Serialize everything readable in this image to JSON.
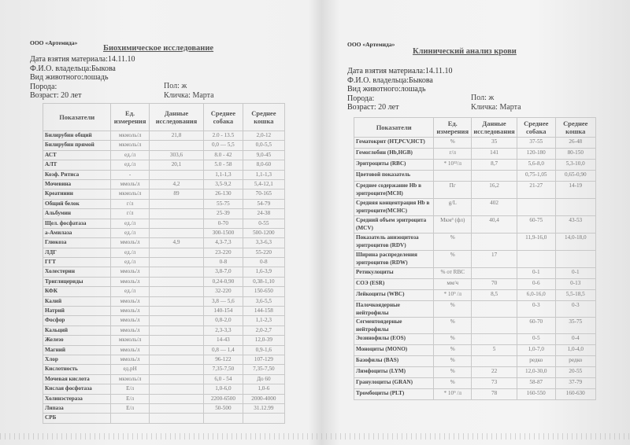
{
  "left": {
    "org": "ООО «Артемида»",
    "title": "Биохимическое исследование",
    "date": "Дата взятия материала:14.11.10",
    "owner": "Ф.И.О. владельца:Быкова",
    "species": "Вид животного:лошадь",
    "breed": "Порода:",
    "age": "Возраст: 20 лет",
    "sex": "Пол: ж",
    "name": "Кличка: Марта",
    "headers": [
      "Показатели",
      "Ед. измерения",
      "Данные исследования",
      "Среднее собака",
      "Среднее кошка"
    ],
    "rows": [
      [
        "Билирубин общий",
        "мкмоль/л",
        "21,8",
        "2.0 - 13.5",
        "2,0-12"
      ],
      [
        "Билирубин прямой",
        "мкмоль/л",
        "",
        "0,0 — 5,5",
        "0,0-5,5"
      ],
      [
        "АСТ",
        "ед./л",
        "303,6",
        "8.0 - 42",
        "9,0-45"
      ],
      [
        "АЛТ",
        "ед./л",
        "20,1",
        "5.0 - 58",
        "8,0-60"
      ],
      [
        "Коэф. Ритиса",
        "-",
        "",
        "1,1-1,3",
        "1,1-1,3"
      ],
      [
        "Мочевина",
        "ммоль/л",
        "4,2",
        "3,5-9,2",
        "5,4-12,1"
      ],
      [
        "Креатинин",
        "мкмоль/л",
        "89",
        "26-130",
        "70-165"
      ],
      [
        "Общий белок",
        "г/л",
        "",
        "55-75",
        "54-79"
      ],
      [
        "Альбумин",
        "г/л",
        "",
        "25-39",
        "24-38"
      ],
      [
        "Щел. фосфатаза",
        "ед./л",
        "",
        "0-70",
        "0-55"
      ],
      [
        "а-Амилаза",
        "ед./л",
        "",
        "300-1500",
        "500-1200"
      ],
      [
        "Глюкоза",
        "ммоль/л",
        "4,9",
        "4,3-7,3",
        "3,3-6,3"
      ],
      [
        "ЛДГ",
        "ед./л",
        "",
        "23-220",
        "55-220"
      ],
      [
        "ГГТ",
        "ед./л",
        "",
        "0-8",
        "0-8"
      ],
      [
        "Холестерин",
        "ммоль/л",
        "",
        "3,8-7,0",
        "1,6-3,9"
      ],
      [
        "Триглицериды",
        "ммоль/л",
        "",
        "0,24-0,90",
        "0,38-1,10"
      ],
      [
        "КФК",
        "ед./л",
        "",
        "32-220",
        "150-650"
      ],
      [
        "Калий",
        "ммоль/л",
        "",
        "3,8 — 5,6",
        "3,6-5,5"
      ],
      [
        "Натрий",
        "ммоль/л",
        "",
        "140-154",
        "144-158"
      ],
      [
        "Фосфор",
        "ммоль/л",
        "",
        "0,8-2,0",
        "1,1-2,3"
      ],
      [
        "Кальций",
        "ммоль/л",
        "",
        "2,3-3,3",
        "2,0-2,7"
      ],
      [
        "Железо",
        "мкмоль/л",
        "",
        "14-43",
        "12,0-39"
      ],
      [
        "Магний",
        "ммоль/л",
        "",
        "0,8 — 1,4",
        "0,9-1,6"
      ],
      [
        "Хлор",
        "ммоль/л",
        "",
        "96-122",
        "107-129"
      ],
      [
        "Кислотность",
        "ед.pH",
        "",
        "7,35-7,50",
        "7,35-7,50"
      ],
      [
        "Мочевая кислота",
        "мкмоль/л",
        "",
        "6,0 - 54",
        "До 60"
      ],
      [
        "Кислая фосфотаза",
        "Е/л",
        "",
        "1,0-6,0",
        "1,0-6"
      ],
      [
        "Холинэстераза",
        "Е/л",
        "",
        "2200-6500",
        "2000-4000"
      ],
      [
        "Липаза",
        "Е/л",
        "",
        "50-500",
        "31.12.99"
      ],
      [
        "СРБ",
        "",
        "",
        "",
        ""
      ]
    ]
  },
  "right": {
    "org": "ООО «Артемида»",
    "title": "Клинический анализ крови",
    "date": "Дата взятия материала:14.11.10",
    "owner": "Ф.И.О. владельца:Быкова",
    "species": "Вид животного:лошадь",
    "breed": "Порода:",
    "age": "Возраст: 20 лет",
    "sex": "Пол: ж",
    "name": "Кличка: Марта",
    "headers": [
      "Показатели",
      "Ед. измерения",
      "Данные исследования",
      "Среднее собака",
      "Среднее кошка"
    ],
    "rows": [
      [
        "Гематокрит (HT,PCV,HCT)",
        "%",
        "35",
        "37-55",
        "26-48"
      ],
      [
        "Гемоглобин (Hb,HGB)",
        "г/л",
        "141",
        "120-180",
        "80-150"
      ],
      [
        "Эритроциты (RBC)",
        "* 10¹²/л",
        "8,7",
        "5,6-8,0",
        "5,3-10,0"
      ],
      [
        "Цветовой показатель",
        "",
        "",
        "0,75-1,05",
        "0,65-0,90"
      ],
      [
        "Среднее содержание Hb в эритроците(MCH)",
        "Пг",
        "16,2",
        "21-27",
        "14-19"
      ],
      [
        "Средняя концентрация Hb в эритроците(MCHC)",
        "g/L",
        "402",
        "",
        ""
      ],
      [
        "Средний объем эритроцита (MCV)",
        "Мкм³ (фл)",
        "40,4",
        "60-75",
        "43-53"
      ],
      [
        "Показатель анизоцитоза эритроцитов (RDV)",
        "%",
        "",
        "11,9-16,0",
        "14,0-18,0"
      ],
      [
        "Ширина распределения эритроцитов (RDW)",
        "%",
        "17",
        "",
        ""
      ],
      [
        "Ретикулоциты",
        "% от RBC",
        "",
        "0-1",
        "0-1"
      ],
      [
        "СОЭ (ESR)",
        "мм/ч",
        "70",
        "0-6",
        "0-13"
      ],
      [
        "Лейкоциты (WBC)",
        "* 10⁹ /л",
        "8,5",
        "6,0-16,0",
        "5,5-18,5"
      ],
      [
        "Палочкоядерные нейтрофилы",
        "%",
        "",
        "0-3",
        "0-3"
      ],
      [
        "Сегментоядерные нейтрофилы",
        "%",
        "",
        "60-70",
        "35-75"
      ],
      [
        "Эозинофилы (EOS)",
        "%",
        "",
        "0-5",
        "0-4"
      ],
      [
        "Моноциты (MONO)",
        "%",
        "5",
        "1,0-7,0",
        "1,0-4,0"
      ],
      [
        "Базофилы (BAS)",
        "%",
        "",
        "редко",
        "редко"
      ],
      [
        "Лимфоциты (LYM)",
        "%",
        "22",
        "12,0-30,0",
        "20-55"
      ],
      [
        "Гранулоциты (GRAN)",
        "%",
        "73",
        "58-87",
        "37-79"
      ],
      [
        "Тромбоциты (PLT)",
        "* 10⁹ /л",
        "78",
        "160-550",
        "160-630"
      ]
    ]
  }
}
